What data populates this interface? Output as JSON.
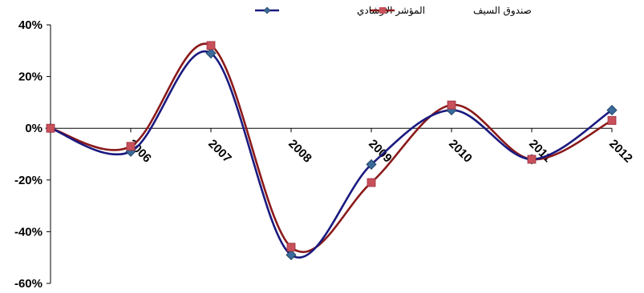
{
  "chart_data": {
    "type": "line",
    "title": "",
    "xlabel": "",
    "ylabel": "",
    "categories": [
      "",
      "2006",
      "2007",
      "2008",
      "2009",
      "2010",
      "2011",
      "2012"
    ],
    "ylim": [
      -0.6,
      0.4
    ],
    "yticks": [
      {
        "value": 0.4,
        "label": "40%"
      },
      {
        "value": 0.2,
        "label": "20%"
      },
      {
        "value": 0.0,
        "label": "0%"
      },
      {
        "value": -0.2,
        "label": "-20%"
      },
      {
        "value": -0.4,
        "label": "-40%"
      },
      {
        "value": -0.6,
        "label": "-60%"
      }
    ],
    "legend_position": "top-center",
    "smooth": true,
    "grid": false,
    "series": [
      {
        "name": "المؤشر الارشادي",
        "color": "#1a1a80",
        "marker": "diamond",
        "marker_color": "#3a6a9a",
        "values": [
          0.0,
          -0.09,
          0.29,
          -0.49,
          -0.14,
          0.07,
          -0.12,
          0.07
        ]
      },
      {
        "name": "صندوق السيف",
        "color": "#8b1a1a",
        "marker": "square",
        "marker_color": "#c8505a",
        "values": [
          0.0,
          -0.07,
          0.32,
          -0.46,
          -0.21,
          0.09,
          -0.12,
          0.03
        ]
      }
    ]
  }
}
